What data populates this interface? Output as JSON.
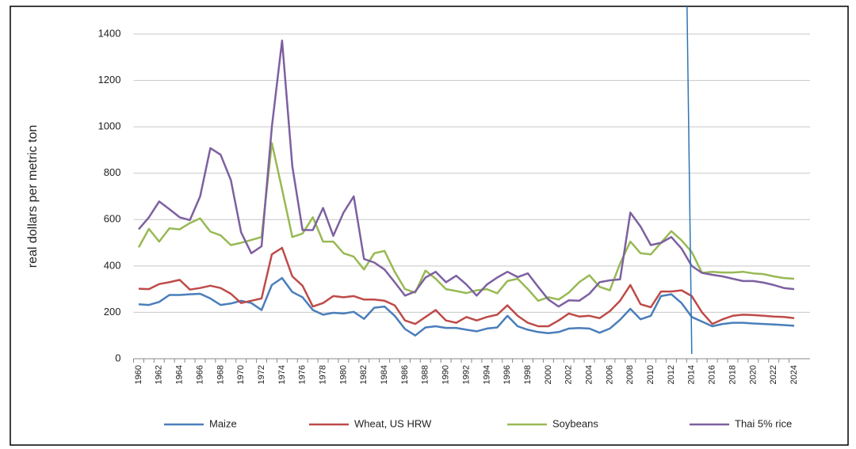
{
  "chart_data": {
    "type": "line",
    "y_axis_label": "real dollars per metric ton",
    "categories": [
      "1960",
      null,
      "1962",
      null,
      "1964",
      null,
      "1966",
      null,
      "1968",
      null,
      "1970",
      null,
      "1972",
      null,
      "1974",
      null,
      "1976",
      null,
      "1978",
      null,
      "1980",
      null,
      "1982",
      null,
      "1984",
      null,
      "1986",
      null,
      "1988",
      null,
      "1990",
      null,
      "1992",
      null,
      "1994",
      null,
      "1996",
      null,
      "1998",
      null,
      "2000",
      null,
      "2002",
      null,
      "2004",
      null,
      "2006",
      null,
      "2008",
      null,
      "2010",
      null,
      "2012",
      null,
      "2014",
      null,
      "2016",
      null,
      "2018",
      null,
      "2020",
      null,
      "2022",
      null,
      "2024"
    ],
    "series": [
      {
        "name": "Maize",
        "color": "#4a7ebb",
        "values": [
          235,
          232,
          245,
          275,
          275,
          278,
          280,
          260,
          232,
          238,
          250,
          240,
          210,
          318,
          348,
          288,
          265,
          210,
          190,
          198,
          195,
          202,
          172,
          220,
          225,
          185,
          128,
          100,
          135,
          140,
          133,
          133,
          125,
          118,
          130,
          135,
          185,
          140,
          125,
          115,
          110,
          115,
          130,
          132,
          130,
          112,
          130,
          168,
          215,
          170,
          185,
          270,
          278,
          240,
          180,
          160,
          140,
          150,
          155,
          155,
          152,
          150,
          148,
          145,
          142
        ]
      },
      {
        "name": "Wheat, US HRW",
        "color": "#be4b48",
        "values": [
          302,
          300,
          322,
          330,
          340,
          298,
          305,
          315,
          305,
          280,
          240,
          250,
          260,
          450,
          478,
          355,
          315,
          225,
          240,
          270,
          265,
          270,
          255,
          255,
          250,
          230,
          165,
          150,
          180,
          210,
          165,
          155,
          180,
          165,
          180,
          190,
          230,
          185,
          155,
          140,
          140,
          165,
          195,
          182,
          185,
          175,
          205,
          250,
          318,
          235,
          222,
          290,
          290,
          295,
          270,
          200,
          150,
          170,
          185,
          190,
          188,
          185,
          182,
          180,
          175
        ]
      },
      {
        "name": "Soybeans",
        "color": "#98b954",
        "values": [
          480,
          560,
          505,
          562,
          558,
          585,
          605,
          548,
          532,
          490,
          500,
          512,
          525,
          930,
          730,
          525,
          540,
          610,
          505,
          505,
          455,
          440,
          385,
          455,
          465,
          375,
          300,
          285,
          380,
          345,
          300,
          292,
          283,
          295,
          300,
          282,
          335,
          345,
          300,
          250,
          265,
          255,
          285,
          330,
          360,
          310,
          295,
          410,
          505,
          455,
          450,
          500,
          550,
          510,
          460,
          370,
          375,
          372,
          372,
          375,
          368,
          365,
          355,
          348,
          345
        ]
      },
      {
        "name": "Thai 5% rice",
        "color": "#7d60a0",
        "values": [
          558,
          610,
          678,
          645,
          610,
          598,
          700,
          908,
          880,
          770,
          545,
          455,
          485,
          1000,
          1372,
          830,
          555,
          555,
          650,
          530,
          630,
          700,
          430,
          415,
          385,
          330,
          272,
          290,
          350,
          375,
          330,
          358,
          320,
          272,
          320,
          350,
          375,
          352,
          368,
          310,
          255,
          225,
          252,
          250,
          280,
          330,
          338,
          342,
          630,
          570,
          490,
          500,
          525,
          475,
          400,
          370,
          362,
          355,
          345,
          335,
          335,
          328,
          318,
          305,
          300
        ]
      }
    ],
    "ylim": [
      0,
      1400
    ],
    "yticks": [
      0,
      200,
      400,
      600,
      800,
      1000,
      1200,
      1400
    ],
    "grid": true,
    "legend": "bottom",
    "vertical_line_at": "2014",
    "vertical_line_color": "#2e75b6"
  }
}
